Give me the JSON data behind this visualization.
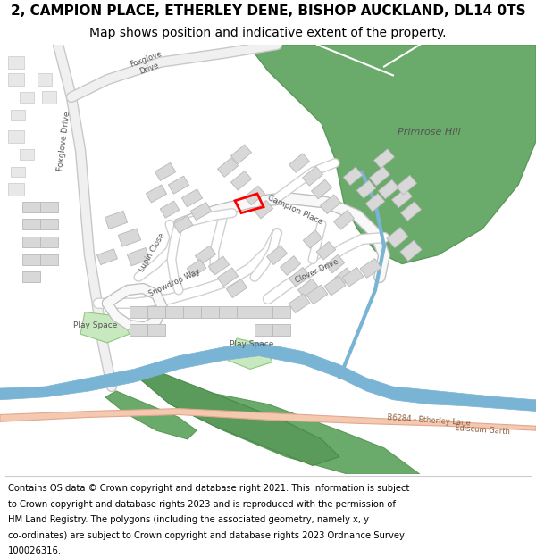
{
  "title_line1": "2, CAMPION PLACE, ETHERLEY DENE, BISHOP AUCKLAND, DL14 0TS",
  "title_line2": "Map shows position and indicative extent of the property.",
  "footer_lines": [
    "Contains OS data © Crown copyright and database right 2021. This information is subject",
    "to Crown copyright and database rights 2023 and is reproduced with the permission of",
    "HM Land Registry. The polygons (including the associated geometry, namely x, y",
    "co-ordinates) are subject to Crown copyright and database rights 2023 Ordnance Survey",
    "100026316."
  ],
  "map_bg": "#ffffff",
  "green_area": "#6aaa6a",
  "play_space": "#c8e8c0",
  "river_color": "#7ab4d4",
  "road_highlight": "#f5c8b0",
  "title_fontsize": 11,
  "subtitle_fontsize": 10,
  "footer_fontsize": 7.2
}
